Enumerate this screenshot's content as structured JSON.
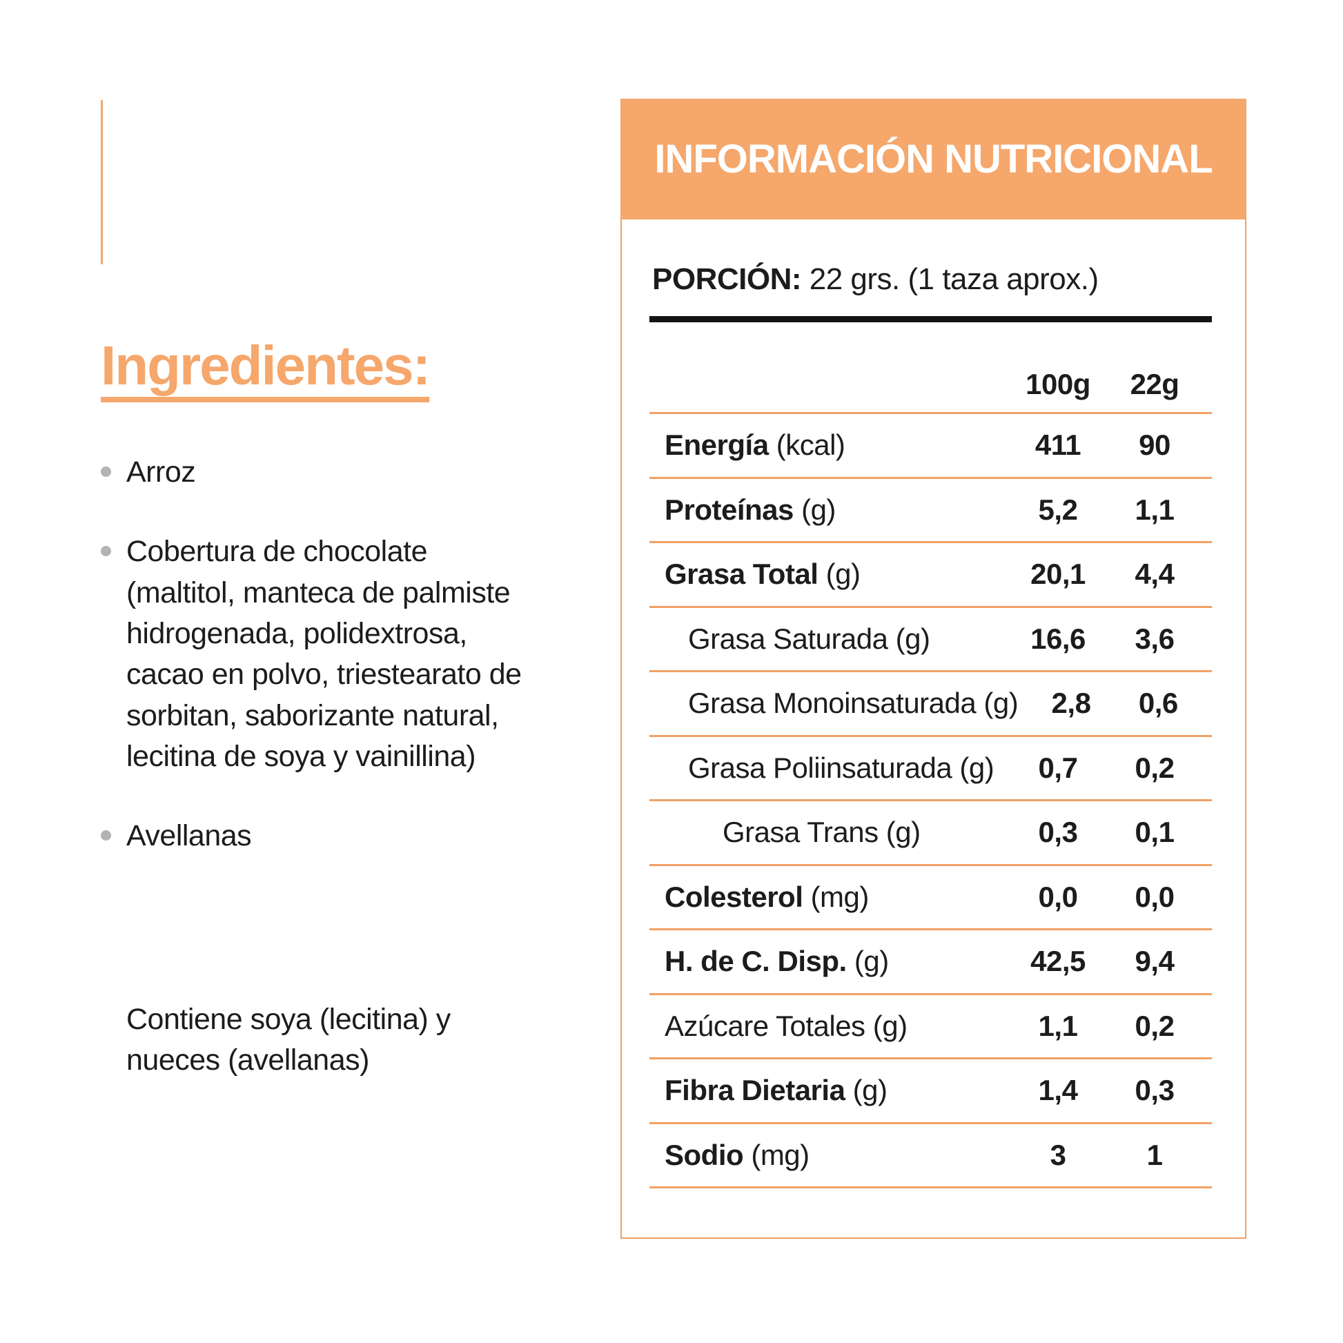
{
  "colors": {
    "accent": "#F5A76C",
    "divider": "#F0A165",
    "heading_rule": "#141414",
    "text": "#1C1C1C",
    "bullet": "#B3B3B3",
    "card_bg": "#FFFFFF",
    "title_text": "#FFFFFF"
  },
  "ingredients": {
    "heading": "Ingredientes:",
    "items": [
      "Arroz",
      "Cobertura de chocolate (maltitol, manteca de palmiste hidrogenada, polidextrosa, cacao en polvo, triestearato de sorbitan, saborizante natural, lecitina de soya y vainillina)",
      "Avellanas"
    ],
    "allergen_note": "Contiene soya (lecitina) y nueces (avellanas)"
  },
  "nutrition": {
    "title": "INFORMACIÓN NUTRICIONAL",
    "portion_label": "PORCIÓN:",
    "portion_value": "22 grs. (1 taza aprox.)",
    "col_headers": [
      "100g",
      "22g"
    ],
    "rows": [
      {
        "label": "Energía",
        "unit": "(kcal)",
        "bold": true,
        "indent": 0,
        "v100": "411",
        "v22": "90"
      },
      {
        "label": "Proteínas",
        "unit": "(g)",
        "bold": true,
        "indent": 0,
        "v100": "5,2",
        "v22": "1,1"
      },
      {
        "label": "Grasa Total",
        "unit": "(g)",
        "bold": true,
        "indent": 0,
        "v100": "20,1",
        "v22": "4,4"
      },
      {
        "label": "Grasa Saturada",
        "unit": "(g)",
        "bold": false,
        "indent": 1,
        "v100": "16,6",
        "v22": "3,6"
      },
      {
        "label": "Grasa Monoinsaturada",
        "unit": "(g)",
        "bold": false,
        "indent": 1,
        "v100": "2,8",
        "v22": "0,6"
      },
      {
        "label": "Grasa Poliinsaturada",
        "unit": "(g)",
        "bold": false,
        "indent": 1,
        "v100": "0,7",
        "v22": "0,2"
      },
      {
        "label": "Grasa Trans",
        "unit": "(g)",
        "bold": false,
        "indent": 2,
        "v100": "0,3",
        "v22": "0,1"
      },
      {
        "label": "Colesterol",
        "unit": "(mg)",
        "bold": true,
        "indent": 0,
        "v100": "0,0",
        "v22": "0,0"
      },
      {
        "label": "H. de C. Disp.",
        "unit": "(g)",
        "bold": true,
        "indent": 0,
        "v100": "42,5",
        "v22": "9,4"
      },
      {
        "label": "Azúcare Totales",
        "unit": "(g)",
        "bold": false,
        "indent": 0,
        "v100": "1,1",
        "v22": "0,2"
      },
      {
        "label": "Fibra Dietaria",
        "unit": "(g)",
        "bold": true,
        "indent": 0,
        "v100": "1,4",
        "v22": "0,3"
      },
      {
        "label": "Sodio",
        "unit": "(mg)",
        "bold": true,
        "indent": 0,
        "v100": "3",
        "v22": "1"
      }
    ]
  }
}
